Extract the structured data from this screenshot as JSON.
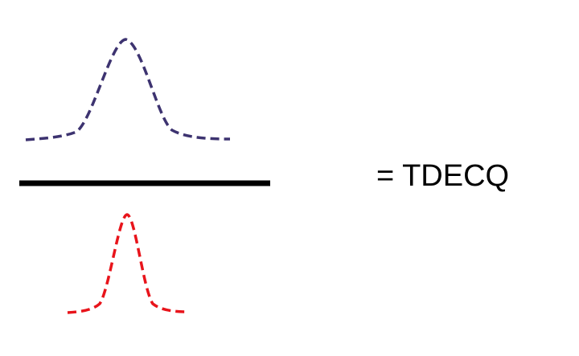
{
  "equation": {
    "label": "= TDECQ"
  },
  "colors": {
    "numerator_curve": "#3d3370",
    "denominator_curve": "#e8141b",
    "fraction_bar": "#000000",
    "text": "#000000"
  },
  "curves": {
    "numerator": {
      "shape": "gaussian",
      "width": "wide",
      "style": "dashed"
    },
    "denominator": {
      "shape": "gaussian",
      "width": "narrow",
      "style": "dashed"
    }
  }
}
